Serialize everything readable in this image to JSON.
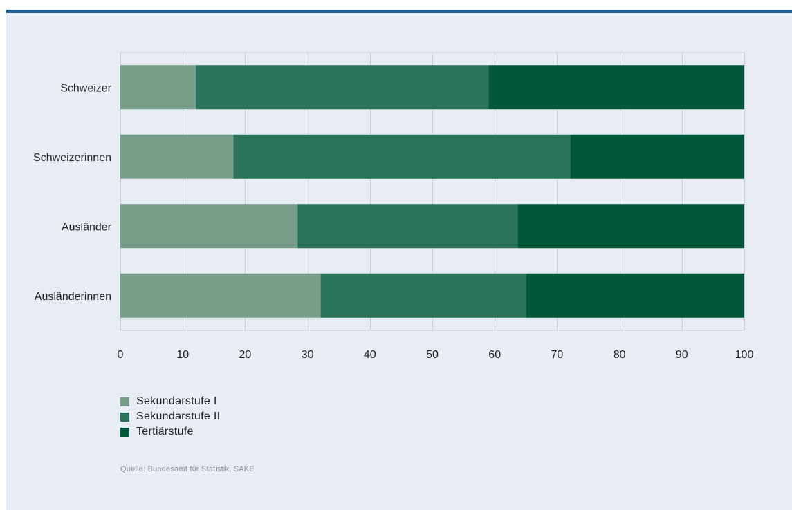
{
  "chart_data": {
    "type": "bar",
    "orientation": "horizontal",
    "stacked": true,
    "categories": [
      "Schweizer",
      "Schweizerinnen",
      "Ausländer",
      "Ausländerinnen"
    ],
    "series": [
      {
        "name": "Sekundarstufe I",
        "color": "#789e89",
        "values": [
          12.1,
          18.1,
          28.4,
          32.1
        ]
      },
      {
        "name": "Sekundarstufe II",
        "color": "#2b745b",
        "values": [
          46.9,
          54.0,
          35.3,
          32.9
        ]
      },
      {
        "name": "Tertiärstufe",
        "color": "#00573a",
        "values": [
          41.0,
          27.9,
          36.3,
          35.0
        ]
      }
    ],
    "xlim": [
      0,
      100
    ],
    "xticks": [
      0,
      10,
      20,
      30,
      40,
      50,
      60,
      70,
      80,
      90,
      100
    ],
    "grid": true,
    "legend_position": "bottom-left",
    "title": "",
    "xlabel": "",
    "ylabel": ""
  },
  "source": "Quelle: Bundesamt für Statistik, SAKE"
}
